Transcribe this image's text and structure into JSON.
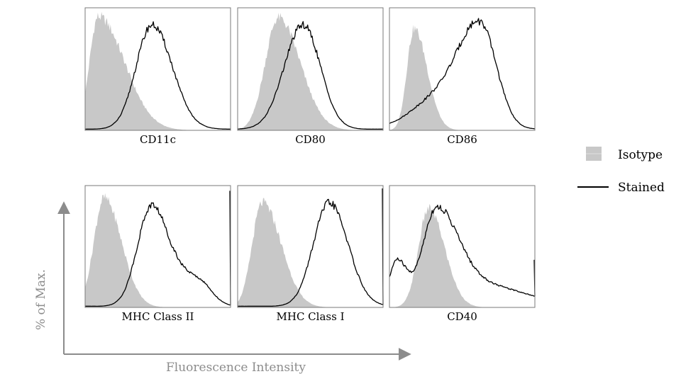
{
  "chart_data": {
    "type": "area",
    "x_axis_label": "Fluorescence Intensity",
    "y_axis_label": "% of Max.",
    "legend": {
      "placement": "right",
      "entries": [
        {
          "label": "Isotype",
          "style": "filled",
          "color": "#c8c8c8"
        },
        {
          "label": "Stained",
          "style": "line",
          "color": "#000000"
        }
      ]
    },
    "x_range": [
      0,
      1
    ],
    "y_range": [
      0,
      1
    ],
    "panels": [
      {
        "name": "CD11c",
        "isotype": {
          "peak_x": 0.09,
          "peak_y": 0.95,
          "width_left": 0.06,
          "width_right": 0.18
        },
        "stained": [
          {
            "peak_x": 0.46,
            "peak_y": 0.88,
            "width_left": 0.11,
            "width_right": 0.14
          }
        ],
        "stained_floor": 0.01,
        "right_spike": 0
      },
      {
        "name": "CD80",
        "isotype": {
          "peak_x": 0.28,
          "peak_y": 0.94,
          "width_left": 0.09,
          "width_right": 0.15
        },
        "stained": [
          {
            "peak_x": 0.45,
            "peak_y": 0.88,
            "width_left": 0.13,
            "width_right": 0.12
          }
        ],
        "stained_floor": 0.01,
        "right_spike": 0
      },
      {
        "name": "CD86",
        "isotype": {
          "peak_x": 0.17,
          "peak_y": 0.85,
          "width_left": 0.05,
          "width_right": 0.09
        },
        "stained": [
          {
            "peak_x": 0.63,
            "peak_y": 0.85,
            "width_left": 0.14,
            "width_right": 0.11
          },
          {
            "peak_x": 0.38,
            "peak_y": 0.32,
            "width_left": 0.2,
            "width_right": 0.18
          }
        ],
        "stained_floor": 0.01,
        "right_spike": 0
      },
      {
        "name": "MHC Class II",
        "isotype": {
          "peak_x": 0.13,
          "peak_y": 0.92,
          "width_left": 0.07,
          "width_right": 0.12
        },
        "stained": [
          {
            "peak_x": 0.46,
            "peak_y": 0.86,
            "width_left": 0.1,
            "width_right": 0.13
          },
          {
            "peak_x": 0.78,
            "peak_y": 0.22,
            "width_left": 0.12,
            "width_right": 0.09
          }
        ],
        "stained_floor": 0.01,
        "right_spike": 0.98
      },
      {
        "name": "MHC Class I",
        "isotype": {
          "peak_x": 0.17,
          "peak_y": 0.88,
          "width_left": 0.07,
          "width_right": 0.13
        },
        "stained": [
          {
            "peak_x": 0.63,
            "peak_y": 0.88,
            "width_left": 0.11,
            "width_right": 0.13
          }
        ],
        "stained_floor": 0.01,
        "right_spike": 1.0
      },
      {
        "name": "CD40",
        "isotype": {
          "peak_x": 0.27,
          "peak_y": 0.83,
          "width_left": 0.07,
          "width_right": 0.11
        },
        "stained": [
          {
            "peak_x": 0.32,
            "peak_y": 0.82,
            "width_left": 0.09,
            "width_right": 0.15
          },
          {
            "peak_x": 0.65,
            "peak_y": 0.18,
            "width_left": 0.25,
            "width_right": 0.28
          },
          {
            "peak_x": 0.05,
            "peak_y": 0.4,
            "width_left": 0.05,
            "width_right": 0.07
          }
        ],
        "stained_floor": 0.02,
        "right_spike": 0.4
      }
    ]
  }
}
